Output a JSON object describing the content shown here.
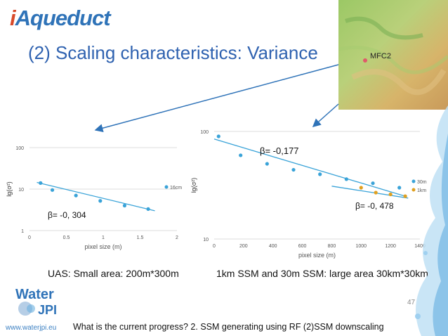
{
  "logo": {
    "text_pre": "i",
    "text_main": "Aqueduct"
  },
  "title": "(2) Scaling characteristics: Variance",
  "map": {
    "label": "MFC2"
  },
  "chart_data": [
    {
      "type": "scatter",
      "yscale": "log",
      "xlim": [
        0,
        2
      ],
      "ylim": [
        1,
        100
      ],
      "xticks": [
        "0",
        "0.5",
        "1",
        "1.5",
        "2"
      ],
      "yticks": [
        "1",
        "10",
        "100"
      ],
      "xlabel": "pixel size (m)",
      "ylabel": "lg(σ²)",
      "series": [
        {
          "name": "16cm",
          "color": "#3aa3d8",
          "x": [
            0.15,
            0.31,
            0.63,
            0.96,
            1.29,
            1.61
          ],
          "y": [
            14.0,
            9.5,
            7.0,
            5.2,
            4.0,
            3.3
          ]
        }
      ],
      "trendline": {
        "x": [
          0.1,
          1.7
        ],
        "y": [
          14.5,
          3.0
        ]
      },
      "annotation": "β= -0, 304"
    },
    {
      "type": "scatter",
      "yscale": "log",
      "xlim": [
        0,
        1400
      ],
      "ylim": [
        10,
        100
      ],
      "xticks": [
        "0",
        "200",
        "400",
        "600",
        "800",
        "1000",
        "1200",
        "1400"
      ],
      "yticks": [
        "10",
        "100"
      ],
      "xlabel": "pixel size (m)",
      "ylabel": "lg(σ²)",
      "series": [
        {
          "name": "30m",
          "color": "#3aa3d8",
          "x": [
            30,
            180,
            360,
            540,
            720,
            900,
            1080,
            1260
          ],
          "y": [
            90,
            60,
            50,
            44,
            40,
            36,
            33,
            30
          ]
        },
        {
          "name": "1km",
          "color": "#e0a020",
          "x": [
            1000,
            1100,
            1200,
            1300
          ],
          "y": [
            30,
            27,
            26,
            25
          ]
        }
      ],
      "trendline": {
        "x": [
          0,
          1300
        ],
        "y": [
          85,
          25
        ]
      },
      "trendline2": {
        "x": [
          800,
          1320
        ],
        "y": [
          31,
          24
        ]
      },
      "annotation_top": "β= -0,177",
      "annotation_bottom": "β= -0, 478"
    }
  ],
  "captions": {
    "left": "UAS: Small area: 200m*300m",
    "right": "1km SSM and 30m SSM: large area 30km*30km"
  },
  "footer": {
    "url": "www.waterjpi.eu",
    "text": "What is the current progress? 2. SSM generating using RF (2)SSM downscaling",
    "page": "47",
    "logo_line1": "Water",
    "logo_line2": "JPI"
  }
}
